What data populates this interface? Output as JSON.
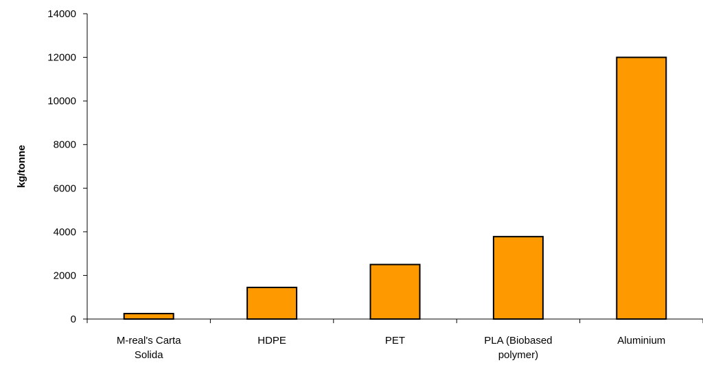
{
  "chart_data": {
    "type": "bar",
    "title": "",
    "xlabel": "",
    "ylabel": "kg/tonne",
    "categories": [
      [
        "M-real's Carta",
        "Solida"
      ],
      [
        "HDPE"
      ],
      [
        "PET"
      ],
      [
        "PLA (Biobased",
        "polymer)"
      ],
      [
        "Aluminium"
      ]
    ],
    "values": [
      250,
      1450,
      2500,
      3780,
      12000
    ],
    "ylim": [
      0,
      14000
    ],
    "yticks": [
      0,
      2000,
      4000,
      6000,
      8000,
      10000,
      12000,
      14000
    ],
    "grid": false,
    "legend": "none",
    "colors": {
      "bar_fill": "#FF9900",
      "bar_stroke": "#000000",
      "axis": "#000000"
    }
  }
}
